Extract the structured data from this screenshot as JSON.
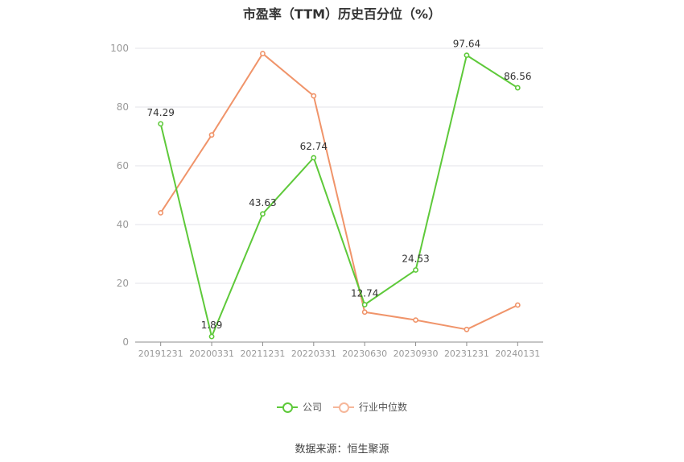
{
  "chart_data": {
    "type": "line",
    "title": "市盈率（TTM）历史百分位（%）",
    "categories": [
      "20191231",
      "20200331",
      "20211231",
      "20220331",
      "20230630",
      "20230930",
      "20231231",
      "20240131"
    ],
    "ylim": [
      0,
      100
    ],
    "yticks": [
      0,
      20,
      40,
      60,
      80,
      100
    ],
    "grid": true,
    "legend_position": "bottom",
    "series": [
      {
        "name": "公司",
        "color": "#5ec93a",
        "values": [
          74.29,
          1.89,
          43.63,
          62.74,
          12.74,
          24.53,
          97.64,
          86.56
        ],
        "labels": [
          "74.29",
          "1.89",
          "43.63",
          "62.74",
          "12.74",
          "24.53",
          "97.64",
          "86.56"
        ]
      },
      {
        "name": "行业中位数",
        "color": "#f0946a",
        "values": [
          44.0,
          70.5,
          98.2,
          83.8,
          10.2,
          7.5,
          4.3,
          12.6
        ]
      }
    ]
  },
  "source": "数据来源：恒生聚源"
}
